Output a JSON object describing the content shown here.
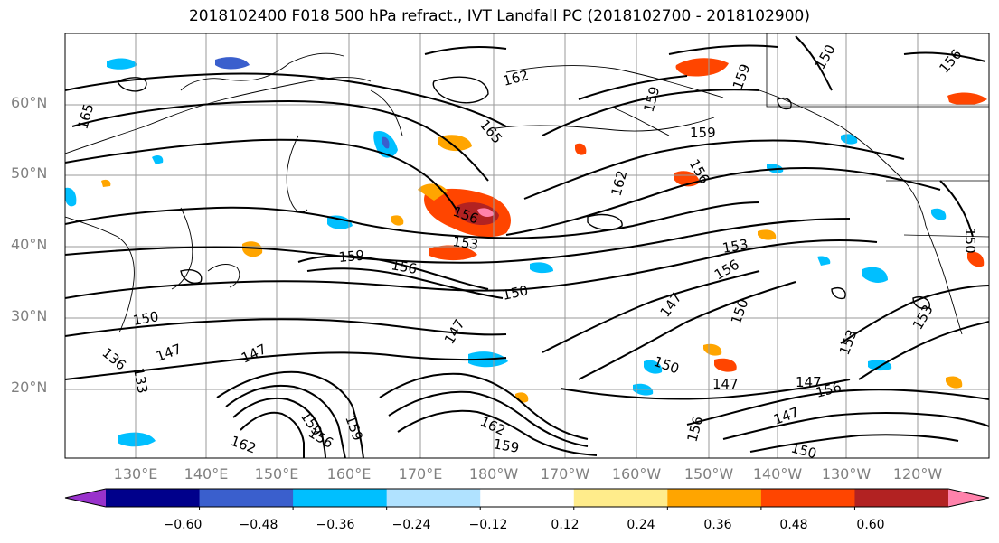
{
  "title": "2018102400 F018 500 hPa refract., IVT Landfall PC (2018102700 - 2018102900)",
  "lat_labels": [
    "60°N",
    "50°N",
    "40°N",
    "30°N",
    "20°N"
  ],
  "lon_labels": [
    "130°E",
    "140°E",
    "150°E",
    "160°E",
    "170°E",
    "180°W",
    "170°W",
    "160°W",
    "150°W",
    "140°W",
    "130°W",
    "120°W"
  ],
  "contour_labels": [
    "165",
    "162",
    "165",
    "159",
    "159",
    "159",
    "162",
    "156",
    "153",
    "159",
    "156",
    "150",
    "153",
    "156",
    "150",
    "147",
    "147",
    "156",
    "147",
    "150",
    "147",
    "150",
    "153",
    "147",
    "147",
    "153",
    "136",
    "133",
    "147",
    "150",
    "156",
    "162",
    "159",
    "156",
    "159",
    "162",
    "159",
    "156",
    "150",
    "156",
    "150"
  ],
  "colorbar": {
    "colors": [
      "#9932cc",
      "#00008b",
      "#3a5fcd",
      "#00bfff",
      "#b0e2ff",
      "#ffffff",
      "#ffec8b",
      "#ffa500",
      "#ff4500",
      "#b22222",
      "#ff82ab"
    ],
    "tick_labels": [
      "−0.60",
      "−0.48",
      "−0.36",
      "−0.24",
      "−0.12",
      "0.12",
      "0.24",
      "0.36",
      "0.48",
      "0.60"
    ]
  }
}
